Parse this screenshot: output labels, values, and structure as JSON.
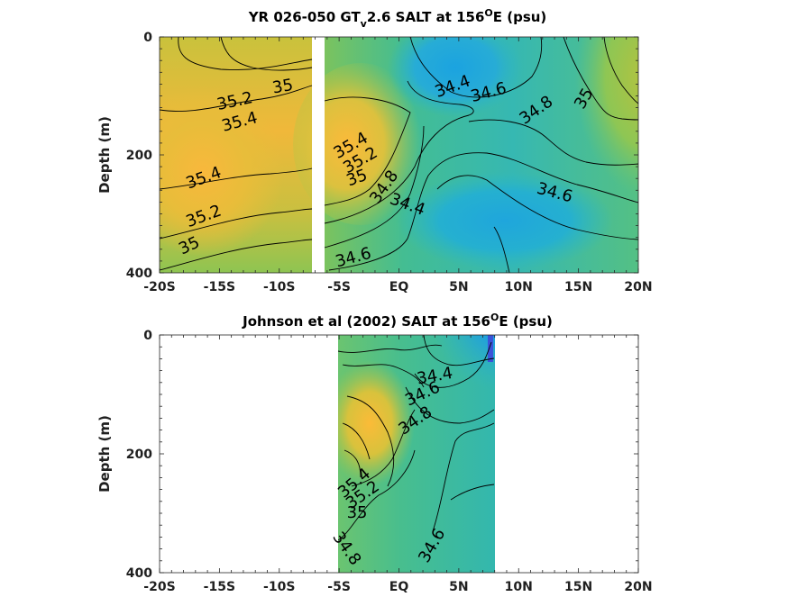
{
  "chart_data": [
    {
      "type": "heatmap",
      "title": "YR 026-050 GT",
      "title_sub": "v",
      "title_rest": "2.6 SALT at 156",
      "title_sup": "O",
      "title_end": "E (psu)",
      "xlabel": "",
      "ylabel": "Depth (m)",
      "xlim": [
        -20,
        20
      ],
      "ylim": [
        400,
        0
      ],
      "x_ticks": [
        -20,
        -15,
        -10,
        -5,
        0,
        5,
        10,
        15,
        20
      ],
      "x_tick_labels": [
        "-20S",
        "-15S",
        "-10S",
        "-5S",
        "EQ",
        "5N",
        "10N",
        "15N",
        "20N"
      ],
      "y_ticks": [
        0,
        200,
        400
      ],
      "y_tick_labels": [
        "0",
        "200",
        "400"
      ],
      "data_extent_lat": [
        -20,
        20
      ],
      "gap_lat": [
        -7.5,
        -6.8
      ],
      "contour_levels": [
        34.4,
        34.6,
        34.8,
        35.0,
        35.2,
        35.4
      ],
      "contour_labels": [
        {
          "text": "35",
          "lat": -9.7,
          "depth": 85,
          "angle": -10
        },
        {
          "text": "35.2",
          "lat": -13.7,
          "depth": 110,
          "angle": -12
        },
        {
          "text": "35.4",
          "lat": -13.3,
          "depth": 145,
          "angle": -15
        },
        {
          "text": "35.4",
          "lat": -16.3,
          "depth": 240,
          "angle": -20
        },
        {
          "text": "35.2",
          "lat": -16.3,
          "depth": 305,
          "angle": -20
        },
        {
          "text": "35",
          "lat": -17.5,
          "depth": 355,
          "angle": -25
        },
        {
          "text": "35.4",
          "lat": -4.0,
          "depth": 185,
          "angle": -30
        },
        {
          "text": "35.2",
          "lat": -3.2,
          "depth": 210,
          "angle": -30
        },
        {
          "text": "35",
          "lat": -3.5,
          "depth": 240,
          "angle": -20
        },
        {
          "text": "34.8",
          "lat": -1.2,
          "depth": 255,
          "angle": -55
        },
        {
          "text": "34.6",
          "lat": -3.8,
          "depth": 375,
          "angle": -15
        },
        {
          "text": "34.4",
          "lat": 0.7,
          "depth": 285,
          "angle": 20
        },
        {
          "text": "34.4",
          "lat": 4.5,
          "depth": 85,
          "angle": -20
        },
        {
          "text": "34.6",
          "lat": 7.5,
          "depth": 95,
          "angle": -15
        },
        {
          "text": "34.8",
          "lat": 11.5,
          "depth": 125,
          "angle": -35
        },
        {
          "text": "35",
          "lat": 15.5,
          "depth": 105,
          "angle": -60
        },
        {
          "text": "34.6",
          "lat": 13.0,
          "depth": 265,
          "angle": 15
        }
      ]
    },
    {
      "type": "heatmap",
      "title": "Johnson et al (2002) SALT at 156",
      "title_sup": "O",
      "title_end": "E (psu)",
      "xlabel": "",
      "ylabel": "Depth (m)",
      "xlim": [
        -20,
        20
      ],
      "ylim": [
        400,
        0
      ],
      "x_ticks": [
        -20,
        -15,
        -10,
        -5,
        0,
        5,
        10,
        15,
        20
      ],
      "x_tick_labels": [
        "-20S",
        "-15S",
        "-10S",
        "-5S",
        "EQ",
        "5N",
        "10N",
        "15N",
        "20N"
      ],
      "y_ticks": [
        0,
        200,
        400
      ],
      "y_tick_labels": [
        "0",
        "200",
        "400"
      ],
      "data_extent_lat": [
        -5,
        8
      ],
      "contour_levels": [
        34.4,
        34.6,
        34.8,
        35.0,
        35.2,
        35.4
      ],
      "contour_labels": [
        {
          "text": "34.4",
          "lat": 3.0,
          "depth": 70,
          "angle": -10
        },
        {
          "text": "34.6",
          "lat": 2.0,
          "depth": 100,
          "angle": -25
        },
        {
          "text": "34.8",
          "lat": 1.4,
          "depth": 145,
          "angle": -35
        },
        {
          "text": "35.4",
          "lat": -3.7,
          "depth": 250,
          "angle": -40
        },
        {
          "text": "35.2",
          "lat": -3.0,
          "depth": 270,
          "angle": -35
        },
        {
          "text": "35",
          "lat": -3.5,
          "depth": 300,
          "angle": 0
        },
        {
          "text": "34.8",
          "lat": -4.4,
          "depth": 360,
          "angle": 55
        },
        {
          "text": "34.6",
          "lat": 2.8,
          "depth": 355,
          "angle": -60
        }
      ]
    }
  ]
}
